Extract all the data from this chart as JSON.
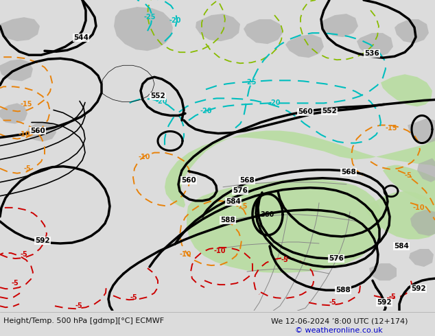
{
  "title_left": "Height/Temp. 500 hPa [gdmp][°C] ECMWF",
  "title_right": "We 12-06-2024 ’8:00 UTC (12+174)",
  "copyright": "© weatheronline.co.uk",
  "bg_color": "#dcdcdc",
  "map_bg": "#e8e8e8",
  "green_fill": "#b8dda0",
  "gray_fill": "#a8a8a8",
  "figsize": [
    6.34,
    4.9
  ],
  "dpi": 100,
  "footer_bg": "#f0f0f0"
}
